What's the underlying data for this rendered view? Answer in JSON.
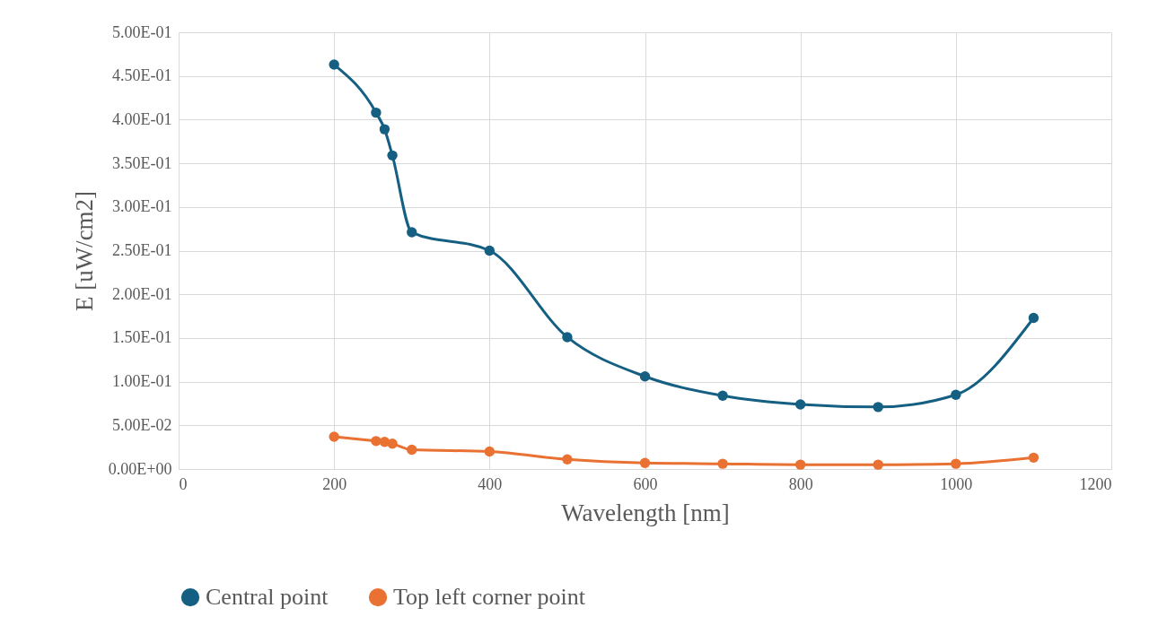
{
  "chart_data": {
    "type": "line",
    "xlabel": "Wavelength [nm]",
    "ylabel": "E [uW/cm2]",
    "x": [
      200,
      254,
      265,
      275,
      300,
      400,
      500,
      600,
      700,
      800,
      900,
      1000,
      1100
    ],
    "series": [
      {
        "name": "Central point",
        "color": "#156082",
        "values": [
          0.463,
          0.408,
          0.389,
          0.359,
          0.271,
          0.25,
          0.151,
          0.106,
          0.084,
          0.074,
          0.071,
          0.085,
          0.173
        ]
      },
      {
        "name": "Top left corner point",
        "color": "#e97132",
        "values": [
          0.037,
          0.032,
          0.031,
          0.029,
          0.022,
          0.02,
          0.011,
          0.007,
          0.006,
          0.005,
          0.005,
          0.006,
          0.013
        ]
      }
    ],
    "xlim": [
      0,
      1200
    ],
    "xticks": [
      0,
      200,
      400,
      600,
      800,
      1000,
      1200
    ],
    "ylim": [
      0,
      0.5
    ],
    "yticks": [
      {
        "value": 0,
        "label": "0.00E+00"
      },
      {
        "value": 0.05,
        "label": "5.00E-02"
      },
      {
        "value": 0.1,
        "label": "1.00E-01"
      },
      {
        "value": 0.15,
        "label": "1.50E-01"
      },
      {
        "value": 0.2,
        "label": "2.00E-01"
      },
      {
        "value": 0.25,
        "label": "2.50E-01"
      },
      {
        "value": 0.3,
        "label": "3.00E-01"
      },
      {
        "value": 0.35,
        "label": "3.50E-01"
      },
      {
        "value": 0.4,
        "label": "4.00E-01"
      },
      {
        "value": 0.45,
        "label": "4.50E-01"
      },
      {
        "value": 0.5,
        "label": "5.00E-01"
      }
    ],
    "grid": true,
    "legend": "bottom",
    "marker": "circle",
    "line_style": "solid"
  }
}
